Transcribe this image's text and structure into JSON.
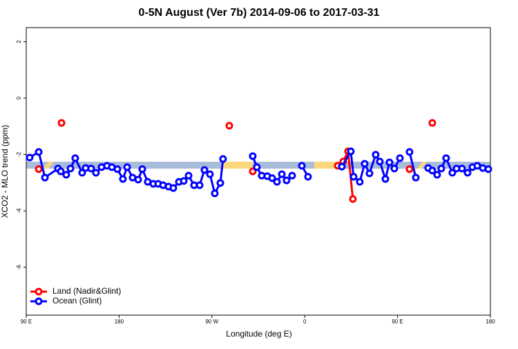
{
  "chart_data": {
    "type": "line",
    "title": "0-5N August (Ver 7b)   2014-09-06 to 2017-03-31",
    "x_label": "Longitude (deg E)",
    "y_label": "XCO2 - MLO trend (ppm)",
    "xlim": [
      90,
      540
    ],
    "ylim": [
      -7.7,
      2.5
    ],
    "xticks": [
      {
        "value": 90,
        "label": "90 E"
      },
      180,
      {
        "value": 270,
        "label": "90 W"
      },
      {
        "value": 360,
        "label": "0"
      },
      {
        "value": 450,
        "label": "90 E"
      },
      {
        "value": 540,
        "label": "180"
      }
    ],
    "yticks": [
      2,
      0,
      -2,
      -4,
      -6
    ],
    "legend": "bottom-left",
    "series": [
      {
        "name": "Land (Nadir&Glint)",
        "color": "#ff0000",
        "x": [
          102.1,
          null,
          124.2,
          null,
          286.9,
          null,
          309.6,
          null,
          392.0,
          397.3,
          402.0,
          406.7,
          null,
          461.6,
          null,
          483.7
        ],
        "values": [
          -2.52,
          null,
          -0.88,
          null,
          -0.98,
          null,
          -2.6,
          null,
          -2.4,
          -2.25,
          -1.89,
          -3.58,
          null,
          -2.52,
          null,
          -0.88
        ]
      },
      {
        "name": "Ocean (Glint)",
        "color": "#0000ff",
        "x": [
          93.3,
          102.1,
          108.1,
          120.8,
          123.5,
          128.8,
          132.9,
          137.5,
          144.2,
          147.6,
          152.9,
          157.6,
          163.0,
          168.3,
          173.0,
          178.4,
          183.7,
          187.8,
          193.1,
          198.5,
          202.5,
          207.8,
          213.2,
          217.9,
          222.6,
          227.9,
          232.6,
          238.0,
          242.7,
          247.4,
          252.7,
          258.1,
          262.8,
          268.1,
          272.8,
          278.2,
          280.8,
          null,
          309.6,
          313.6,
          318.3,
          323.7,
          328.4,
          333.1,
          337.8,
          342.4,
          347.8,
          null,
          357.2,
          363.2,
          null,
          396.0,
          404.7,
          407.4,
          413.4,
          418.1,
          422.8,
          428.8,
          432.8,
          438.2,
          442.2,
          446.9,
          452.3,
          null,
          461.6,
          467.7,
          null,
          479.7,
          483.7,
          488.4,
          492.4,
          497.1,
          503.1,
          507.2,
          512.5,
          517.9,
          522.6,
          527.3,
          532.6,
          538.0
        ],
        "values": [
          -2.11,
          -1.91,
          -2.82,
          -2.5,
          -2.6,
          -2.72,
          -2.5,
          -2.13,
          -2.65,
          -2.48,
          -2.5,
          -2.65,
          -2.45,
          -2.4,
          -2.45,
          -2.52,
          -2.87,
          -2.45,
          -2.82,
          -2.89,
          -2.52,
          -2.97,
          -3.04,
          -3.04,
          -3.09,
          -3.14,
          -3.19,
          -2.97,
          -2.94,
          -2.75,
          -3.09,
          -3.09,
          -2.55,
          -2.7,
          -3.38,
          -3.01,
          -2.16,
          null,
          -2.06,
          -2.45,
          -2.75,
          -2.77,
          -2.84,
          -2.97,
          -2.7,
          -2.92,
          -2.75,
          null,
          -2.4,
          -2.79,
          null,
          -2.43,
          -1.89,
          -2.79,
          -2.97,
          -2.33,
          -2.67,
          -2.01,
          -2.25,
          -2.87,
          -2.28,
          -2.5,
          -2.13,
          null,
          -1.91,
          -2.82,
          null,
          -2.48,
          -2.57,
          -2.72,
          -2.5,
          -2.13,
          -2.65,
          -2.5,
          -2.5,
          -2.65,
          -2.45,
          -2.4,
          -2.48,
          -2.52
        ]
      }
    ]
  }
}
